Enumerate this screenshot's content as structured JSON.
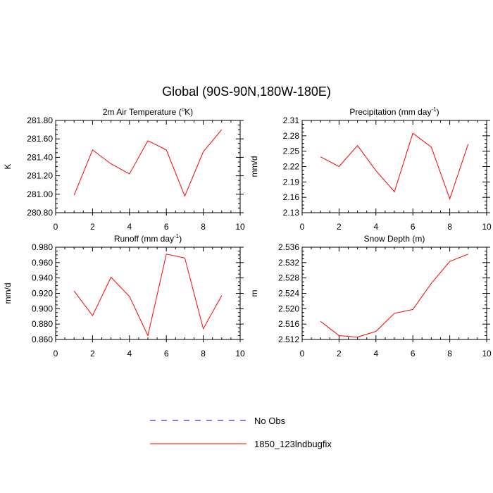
{
  "figure": {
    "title": "Global (90S-90N,180W-180E)"
  },
  "colors": {
    "series": "#ff0000",
    "obs": "#0000ff",
    "axis": "#000000"
  },
  "legend": {
    "placement": "bottom-center",
    "entries": [
      {
        "label": "No Obs",
        "style": "dashed",
        "color": "#0000ff"
      },
      {
        "label": "1850_123lndbugfix",
        "style": "solid",
        "color": "#ff0000"
      }
    ]
  },
  "chart_data": [
    {
      "type": "line",
      "title_parts": [
        "2m Air Temperature (",
        "o",
        "K)"
      ],
      "ylabel": "K",
      "xlim": [
        0,
        10
      ],
      "ylim": [
        280.8,
        281.8
      ],
      "xticks": [
        0,
        2,
        4,
        6,
        8,
        10
      ],
      "yticks": [
        280.8,
        281.0,
        281.2,
        281.4,
        281.6,
        281.8
      ],
      "ytick_labels": [
        "280.80",
        "281.00",
        "281.20",
        "281.40",
        "281.60",
        "281.80"
      ],
      "grid": false,
      "series": [
        {
          "x": [
            1,
            2,
            3,
            4,
            5,
            6,
            7,
            8,
            9
          ],
          "values": [
            280.99,
            281.48,
            281.33,
            281.22,
            281.58,
            281.48,
            280.98,
            281.46,
            281.7
          ]
        }
      ]
    },
    {
      "type": "line",
      "title_parts": [
        "Precipitation (mm day",
        "-1",
        ")"
      ],
      "ylabel": "mm/d",
      "xlim": [
        0,
        10
      ],
      "ylim": [
        2.13,
        2.31
      ],
      "xticks": [
        0,
        2,
        4,
        6,
        8,
        10
      ],
      "yticks": [
        2.13,
        2.16,
        2.19,
        2.22,
        2.25,
        2.28,
        2.31
      ],
      "ytick_labels": [
        "2.13",
        "2.16",
        "2.19",
        "2.22",
        "2.25",
        "2.28",
        "2.31"
      ],
      "grid": false,
      "series": [
        {
          "x": [
            1,
            2,
            3,
            4,
            5,
            6,
            7,
            8,
            9
          ],
          "values": [
            2.239,
            2.22,
            2.261,
            2.212,
            2.171,
            2.285,
            2.258,
            2.157,
            2.264
          ]
        }
      ]
    },
    {
      "type": "line",
      "title_parts": [
        "Runoff (mm day",
        "-1",
        ")"
      ],
      "ylabel": "mm/d",
      "xlim": [
        0,
        10
      ],
      "ylim": [
        0.86,
        0.98
      ],
      "xticks": [
        0,
        2,
        4,
        6,
        8,
        10
      ],
      "yticks": [
        0.86,
        0.88,
        0.9,
        0.92,
        0.94,
        0.96,
        0.98
      ],
      "ytick_labels": [
        "0.860",
        "0.880",
        "0.900",
        "0.920",
        "0.940",
        "0.960",
        "0.980"
      ],
      "grid": false,
      "series": [
        {
          "x": [
            1,
            2,
            3,
            4,
            5,
            6,
            7,
            8,
            9
          ],
          "values": [
            0.923,
            0.891,
            0.941,
            0.916,
            0.865,
            0.971,
            0.966,
            0.874,
            0.917
          ]
        }
      ]
    },
    {
      "type": "line",
      "title_parts": [
        "Snow Depth (m)"
      ],
      "ylabel": "m",
      "xlim": [
        0,
        10
      ],
      "ylim": [
        2.512,
        2.536
      ],
      "xticks": [
        0,
        2,
        4,
        6,
        8,
        10
      ],
      "yticks": [
        2.512,
        2.516,
        2.52,
        2.524,
        2.528,
        2.532,
        2.536
      ],
      "ytick_labels": [
        "2.512",
        "2.516",
        "2.520",
        "2.524",
        "2.528",
        "2.532",
        "2.536"
      ],
      "grid": false,
      "series": [
        {
          "x": [
            1,
            2,
            3,
            4,
            5,
            6,
            7,
            8,
            9
          ],
          "values": [
            2.5167,
            2.513,
            2.5126,
            2.5141,
            2.5188,
            2.5198,
            2.5266,
            2.5323,
            2.5342
          ]
        }
      ]
    }
  ]
}
